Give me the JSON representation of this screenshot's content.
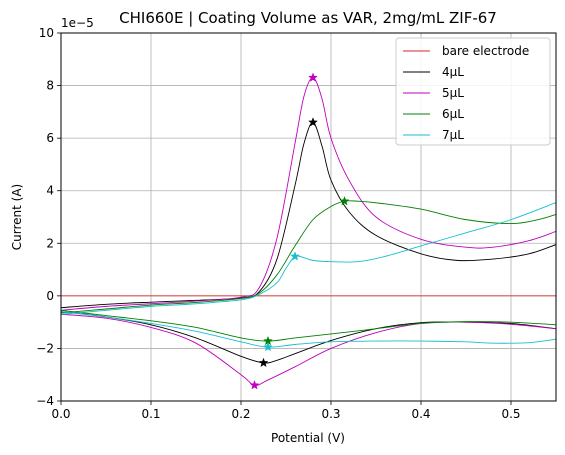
{
  "chart_data": {
    "type": "line",
    "title": "CHI660E | Coating Volume as VAR, 2mg/mL ZIF-67",
    "xlabel": "Potential (V)",
    "ylabel": "Current (A)",
    "y_scale_note": "1e−5",
    "xlim": [
      0.0,
      0.55
    ],
    "ylim": [
      -4,
      10
    ],
    "y_unit_multiplier": 1e-05,
    "grid": true,
    "legend_position": "top-right",
    "x_ticks": [
      0.0,
      0.1,
      0.2,
      0.3,
      0.4,
      0.5
    ],
    "x_tick_labels": [
      "0.0",
      "0.1",
      "0.2",
      "0.3",
      "0.4",
      "0.5"
    ],
    "y_ticks": [
      -4,
      -2,
      0,
      2,
      4,
      6,
      8,
      10
    ],
    "y_tick_labels": [
      "−4",
      "−2",
      "0",
      "2",
      "4",
      "6",
      "8",
      "10"
    ],
    "series": [
      {
        "name": "bare electrode",
        "color": "#d62728",
        "forward": [
          [
            0.0,
            0.0
          ],
          [
            0.55,
            0.0
          ]
        ],
        "reverse": [],
        "markers": []
      },
      {
        "name": "4μL",
        "color": "#000000",
        "forward": [
          [
            0.0,
            -0.45
          ],
          [
            0.05,
            -0.32
          ],
          [
            0.1,
            -0.24
          ],
          [
            0.15,
            -0.17
          ],
          [
            0.2,
            -0.08
          ],
          [
            0.22,
            0.15
          ],
          [
            0.24,
            1.4
          ],
          [
            0.26,
            4.2
          ],
          [
            0.27,
            5.8
          ],
          [
            0.28,
            6.6
          ],
          [
            0.29,
            5.7
          ],
          [
            0.3,
            4.4
          ],
          [
            0.32,
            3.2
          ],
          [
            0.35,
            2.3
          ],
          [
            0.4,
            1.6
          ],
          [
            0.44,
            1.35
          ],
          [
            0.48,
            1.4
          ],
          [
            0.52,
            1.6
          ],
          [
            0.55,
            1.95
          ]
        ],
        "reverse": [
          [
            0.55,
            -1.25
          ],
          [
            0.5,
            -1.05
          ],
          [
            0.45,
            -1.0
          ],
          [
            0.4,
            -1.02
          ],
          [
            0.35,
            -1.25
          ],
          [
            0.3,
            -1.7
          ],
          [
            0.26,
            -2.2
          ],
          [
            0.24,
            -2.45
          ],
          [
            0.225,
            -2.55
          ],
          [
            0.2,
            -2.3
          ],
          [
            0.15,
            -1.6
          ],
          [
            0.1,
            -1.1
          ],
          [
            0.05,
            -0.8
          ],
          [
            0.0,
            -0.6
          ]
        ],
        "markers": [
          [
            0.28,
            6.6
          ],
          [
            0.225,
            -2.55
          ]
        ]
      },
      {
        "name": "5μL",
        "color": "#bf00bf",
        "forward": [
          [
            0.0,
            -0.55
          ],
          [
            0.05,
            -0.4
          ],
          [
            0.1,
            -0.3
          ],
          [
            0.15,
            -0.2
          ],
          [
            0.2,
            -0.05
          ],
          [
            0.22,
            0.3
          ],
          [
            0.24,
            2.2
          ],
          [
            0.26,
            5.8
          ],
          [
            0.27,
            7.6
          ],
          [
            0.28,
            8.3
          ],
          [
            0.29,
            7.5
          ],
          [
            0.3,
            6.0
          ],
          [
            0.32,
            4.4
          ],
          [
            0.35,
            3.0
          ],
          [
            0.4,
            2.15
          ],
          [
            0.45,
            1.85
          ],
          [
            0.48,
            1.85
          ],
          [
            0.52,
            2.1
          ],
          [
            0.55,
            2.45
          ]
        ],
        "reverse": [
          [
            0.55,
            -1.25
          ],
          [
            0.5,
            -1.08
          ],
          [
            0.45,
            -1.0
          ],
          [
            0.4,
            -1.05
          ],
          [
            0.35,
            -1.4
          ],
          [
            0.3,
            -2.0
          ],
          [
            0.26,
            -2.7
          ],
          [
            0.23,
            -3.2
          ],
          [
            0.215,
            -3.4
          ],
          [
            0.2,
            -3.0
          ],
          [
            0.15,
            -1.8
          ],
          [
            0.1,
            -1.2
          ],
          [
            0.05,
            -0.85
          ],
          [
            0.0,
            -0.7
          ]
        ],
        "markers": [
          [
            0.28,
            8.3
          ],
          [
            0.215,
            -3.4
          ]
        ]
      },
      {
        "name": "6μL",
        "color": "#008000",
        "forward": [
          [
            0.0,
            -0.65
          ],
          [
            0.05,
            -0.5
          ],
          [
            0.1,
            -0.35
          ],
          [
            0.15,
            -0.25
          ],
          [
            0.2,
            -0.1
          ],
          [
            0.22,
            0.1
          ],
          [
            0.24,
            0.8
          ],
          [
            0.26,
            1.9
          ],
          [
            0.28,
            2.9
          ],
          [
            0.3,
            3.4
          ],
          [
            0.315,
            3.6
          ],
          [
            0.33,
            3.6
          ],
          [
            0.36,
            3.5
          ],
          [
            0.4,
            3.3
          ],
          [
            0.45,
            2.9
          ],
          [
            0.5,
            2.75
          ],
          [
            0.53,
            2.9
          ],
          [
            0.55,
            3.1
          ]
        ],
        "reverse": [
          [
            0.55,
            -1.1
          ],
          [
            0.5,
            -1.0
          ],
          [
            0.45,
            -0.98
          ],
          [
            0.4,
            -1.05
          ],
          [
            0.35,
            -1.25
          ],
          [
            0.3,
            -1.45
          ],
          [
            0.26,
            -1.6
          ],
          [
            0.23,
            -1.72
          ],
          [
            0.2,
            -1.6
          ],
          [
            0.15,
            -1.2
          ],
          [
            0.1,
            -0.95
          ],
          [
            0.05,
            -0.75
          ],
          [
            0.0,
            -0.55
          ]
        ],
        "markers": [
          [
            0.315,
            3.6
          ],
          [
            0.23,
            -1.72
          ]
        ]
      },
      {
        "name": "7μL",
        "color": "#17becf",
        "forward": [
          [
            0.0,
            -0.7
          ],
          [
            0.05,
            -0.55
          ],
          [
            0.1,
            -0.4
          ],
          [
            0.15,
            -0.3
          ],
          [
            0.2,
            -0.15
          ],
          [
            0.22,
            0.05
          ],
          [
            0.24,
            0.5
          ],
          [
            0.25,
            1.05
          ],
          [
            0.26,
            1.5
          ],
          [
            0.27,
            1.45
          ],
          [
            0.28,
            1.35
          ],
          [
            0.3,
            1.3
          ],
          [
            0.33,
            1.3
          ],
          [
            0.36,
            1.5
          ],
          [
            0.4,
            1.9
          ],
          [
            0.45,
            2.4
          ],
          [
            0.5,
            2.9
          ],
          [
            0.55,
            3.55
          ]
        ],
        "reverse": [
          [
            0.55,
            -1.65
          ],
          [
            0.52,
            -1.78
          ],
          [
            0.48,
            -1.8
          ],
          [
            0.45,
            -1.75
          ],
          [
            0.4,
            -1.72
          ],
          [
            0.35,
            -1.72
          ],
          [
            0.3,
            -1.75
          ],
          [
            0.26,
            -1.85
          ],
          [
            0.23,
            -1.95
          ],
          [
            0.2,
            -1.75
          ],
          [
            0.15,
            -1.35
          ],
          [
            0.1,
            -1.05
          ],
          [
            0.05,
            -0.8
          ],
          [
            0.0,
            -0.6
          ]
        ],
        "markers": [
          [
            0.26,
            1.5
          ],
          [
            0.23,
            -1.95
          ]
        ]
      }
    ]
  }
}
